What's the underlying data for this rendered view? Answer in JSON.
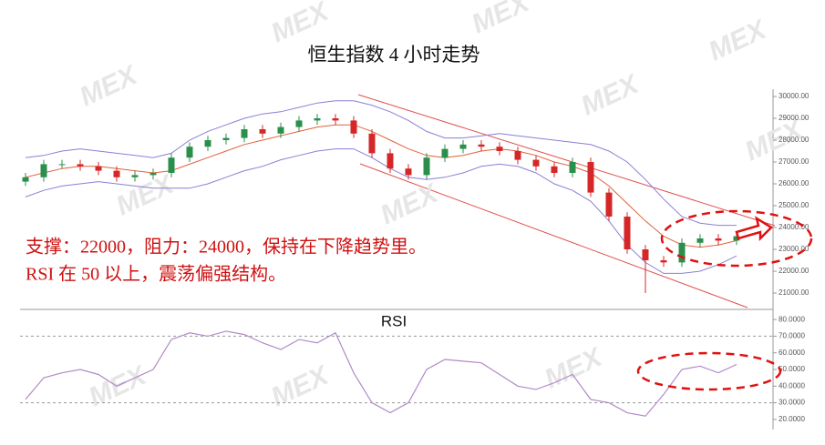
{
  "chart_data": [
    {
      "type": "candlestick",
      "title": "恒生指数   4 小时走势",
      "watermark": "MEX",
      "up_color": "#2a8f4a",
      "down_color": "#d62728",
      "open": [
        26100,
        26300,
        26900,
        26900,
        26800,
        26600,
        26300,
        26400,
        26500,
        27200,
        27700,
        28000,
        28100,
        28500,
        28300,
        28600,
        28900,
        29000,
        28900,
        28300,
        27400,
        26700,
        26400,
        27200,
        27600,
        27800,
        27700,
        27500,
        27100,
        26800,
        26500,
        27000,
        25600,
        24500,
        23000,
        22500,
        22400,
        23300,
        23500,
        23400
      ],
      "high": [
        26500,
        27100,
        27100,
        27100,
        27000,
        26800,
        26600,
        26700,
        27400,
        27900,
        28200,
        28300,
        28700,
        28700,
        28800,
        29100,
        29200,
        29200,
        29100,
        28500,
        27600,
        26900,
        27400,
        27800,
        28000,
        28000,
        27900,
        27700,
        27300,
        27000,
        27200,
        27200,
        25800,
        24700,
        23200,
        22700,
        23500,
        23700,
        23700,
        23800
      ],
      "low": [
        25900,
        26100,
        26700,
        26600,
        26400,
        26100,
        26100,
        26200,
        26300,
        27000,
        27500,
        27800,
        27900,
        28100,
        28100,
        28400,
        28700,
        28700,
        28100,
        27200,
        26500,
        26200,
        26200,
        27000,
        27400,
        27500,
        27300,
        26900,
        26600,
        26300,
        26300,
        25400,
        24300,
        22800,
        21000,
        22200,
        22200,
        23100,
        23200,
        23200
      ],
      "close": [
        26300,
        26900,
        26900,
        26800,
        26600,
        26300,
        26400,
        26500,
        27200,
        27700,
        28000,
        28100,
        28500,
        28300,
        28600,
        28900,
        29000,
        28900,
        28300,
        27400,
        26700,
        26400,
        27200,
        27600,
        27800,
        27700,
        27500,
        27100,
        26800,
        26500,
        27000,
        25600,
        24500,
        23000,
        22500,
        22400,
        23300,
        23500,
        23400,
        23600
      ],
      "bands": [
        {
          "color": "#8a7fd6",
          "values": [
            27200,
            27300,
            27500,
            27600,
            27500,
            27400,
            27300,
            27200,
            27400,
            28000,
            28400,
            28700,
            29000,
            29200,
            29300,
            29500,
            29700,
            29800,
            29800,
            29600,
            29300,
            28900,
            28400,
            28100,
            28100,
            28200,
            28300,
            28200,
            28100,
            28000,
            27900,
            27800,
            27500,
            27000,
            26200,
            25300,
            24500,
            24200,
            24100,
            24100
          ]
        },
        {
          "color": "#e0603a",
          "values": [
            26300,
            26500,
            26700,
            26800,
            26800,
            26700,
            26600,
            26500,
            26600,
            26900,
            27200,
            27500,
            27800,
            28000,
            28200,
            28400,
            28600,
            28700,
            28700,
            28400,
            28000,
            27600,
            27300,
            27200,
            27300,
            27500,
            27600,
            27500,
            27300,
            27000,
            26800,
            26500,
            25900,
            25100,
            24300,
            23600,
            23200,
            23100,
            23200,
            23400
          ]
        },
        {
          "color": "#8a7fd6",
          "values": [
            25400,
            25700,
            25900,
            26000,
            26100,
            26000,
            25900,
            25800,
            25800,
            25800,
            26000,
            26300,
            26600,
            26800,
            27100,
            27300,
            27500,
            27600,
            27600,
            27200,
            26700,
            26300,
            26200,
            26300,
            26500,
            26800,
            26900,
            26800,
            26500,
            26000,
            25700,
            25200,
            24300,
            23200,
            22400,
            21900,
            21900,
            22000,
            22300,
            22700
          ]
        }
      ],
      "annotations": [
        "支撑：22000，阻力：24000，保持在下降趋势里。",
        "RSI 在 50 以上，震荡偏强结构。"
      ],
      "ylim": [
        20250,
        30250
      ],
      "yticks": [
        {
          "value": 21000,
          "label": "21000.00"
        },
        {
          "value": 22000,
          "label": "22000.00"
        },
        {
          "value": 23000,
          "label": "23000.00"
        },
        {
          "value": 24000,
          "label": "24000.00"
        },
        {
          "value": 25000,
          "label": "25000.00"
        },
        {
          "value": 26000,
          "label": "26000.00"
        },
        {
          "value": 27000,
          "label": "27000.00"
        },
        {
          "value": 28000,
          "label": "28000.00"
        },
        {
          "value": 29000,
          "label": "29000.00"
        },
        {
          "value": 30000,
          "label": "30000.00"
        }
      ]
    },
    {
      "type": "line",
      "title": "RSI",
      "color": "#b08ac8",
      "values": [
        32,
        45,
        48,
        50,
        47,
        40,
        45,
        50,
        68,
        72,
        70,
        73,
        71,
        66,
        62,
        68,
        66,
        72,
        48,
        30,
        24,
        30,
        50,
        56,
        55,
        54,
        47,
        40,
        38,
        42,
        47,
        32,
        30,
        24,
        22,
        35,
        50,
        52,
        48,
        53
      ],
      "ref_lines": [
        30,
        70
      ],
      "ylim": [
        15,
        85
      ],
      "yticks": [
        {
          "value": 20,
          "label": "20.0000"
        },
        {
          "value": 30,
          "label": "30.0000"
        },
        {
          "value": 40,
          "label": "40.0000"
        },
        {
          "value": 50,
          "label": "50.0000"
        },
        {
          "value": 60,
          "label": "60.0000"
        },
        {
          "value": 70,
          "label": "70.0000"
        },
        {
          "value": 80,
          "label": "80.0000"
        }
      ]
    }
  ]
}
